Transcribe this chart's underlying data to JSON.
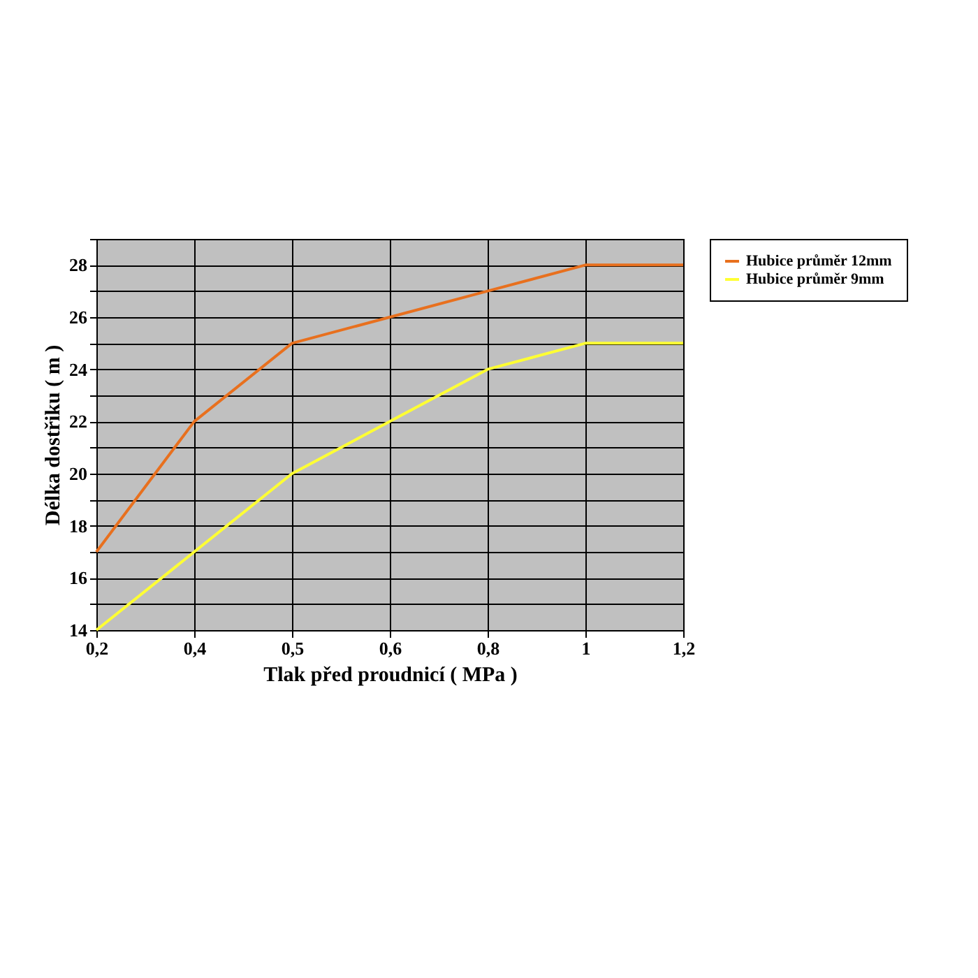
{
  "chart_data": {
    "type": "line",
    "xlabel": "Tlak před proudnicí ( MPa )",
    "ylabel": "Délka dostřiku ( m )",
    "categories": [
      "0,2",
      "0,4",
      "0,5",
      "0,6",
      "0,8",
      "1",
      "1,2"
    ],
    "series": [
      {
        "name": "Hubice průměr 12mm",
        "color": "#e8701e",
        "values": [
          17,
          22,
          25,
          26,
          27,
          28,
          28
        ]
      },
      {
        "name": "Hubice průměr 9mm",
        "color": "#ffff33",
        "values": [
          14,
          17,
          20,
          22,
          24,
          25,
          25
        ]
      }
    ],
    "ylim": [
      14,
      29
    ],
    "yticks": [
      14,
      {
        "value": 15,
        "label": null
      },
      16,
      {
        "value": 17,
        "label": null
      },
      18,
      {
        "value": 19,
        "label": null
      },
      20,
      {
        "value": 21,
        "label": null
      },
      22,
      {
        "value": 23,
        "label": null
      },
      24,
      {
        "value": 25,
        "label": null
      },
      26,
      {
        "value": 27,
        "label": null
      },
      28,
      {
        "value": 29,
        "label": null
      }
    ],
    "grid": true,
    "legend": "top right",
    "marker": "none",
    "line_style": "solid"
  }
}
